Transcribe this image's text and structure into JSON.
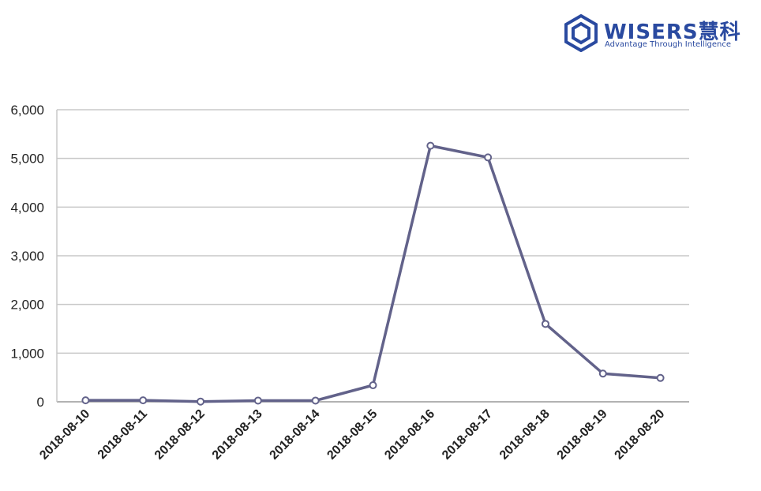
{
  "brand": {
    "name": "WISERS慧科",
    "tagline": "Advantage Through Intelligence",
    "color": "#2a4aa0",
    "icon": "hexagon-logo-icon"
  },
  "chart_data": {
    "type": "line",
    "title": "",
    "xlabel": "",
    "ylabel": "",
    "categories": [
      "2018-08-10",
      "2018-08-11",
      "2018-08-12",
      "2018-08-13",
      "2018-08-14",
      "2018-08-15",
      "2018-08-16",
      "2018-08-17",
      "2018-08-18",
      "2018-08-19",
      "2018-08-20"
    ],
    "series": [
      {
        "values": [
          30,
          30,
          5,
          25,
          25,
          340,
          5260,
          5020,
          1600,
          580,
          490
        ],
        "color": "#62628a"
      }
    ],
    "ylim": [
      0,
      6000
    ],
    "yticks": [
      0,
      1000,
      2000,
      3000,
      4000,
      5000,
      6000
    ],
    "ytick_labels": [
      "0",
      "1,000",
      "2,000",
      "3,000",
      "4,000",
      "5,000",
      "6,000"
    ],
    "grid": true,
    "legend": "none"
  }
}
